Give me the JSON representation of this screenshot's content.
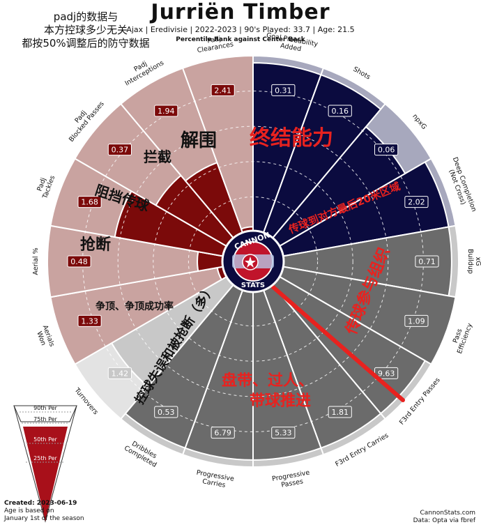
{
  "header": {
    "title": "Jurriën Timber",
    "subtitle": "Ajax  | Eredivisie | 2022-2023 | 90's Played: 33.7 | Age: 21.5",
    "subtitle2": "Percentile Rank against Center Back"
  },
  "note_lines": [
    "padj的数据与",
    "本方控球多少无关",
    "都按50%调整后的防守数据"
  ],
  "chart_data": {
    "type": "pizza",
    "title": "Jurriën Timber",
    "max": 100,
    "slices": [
      {
        "metric": "Goal Probability\nAdded",
        "value": 0.31,
        "percentile": 96,
        "group": "attack"
      },
      {
        "metric": "Shots",
        "value": 0.16,
        "percentile": 96,
        "group": "attack"
      },
      {
        "metric": "npxG",
        "value": 0.06,
        "percentile": 83,
        "group": "attack"
      },
      {
        "metric": "Deep Completion\n(Not Cross)",
        "value": 2.02,
        "percentile": 96,
        "group": "attack"
      },
      {
        "metric": "xG\nBuildup",
        "value": 0.71,
        "percentile": 96,
        "group": "possession"
      },
      {
        "metric": "Pass\nEfficiency",
        "value": 1.09,
        "percentile": 100,
        "group": "possession"
      },
      {
        "metric": "F3rd Entry Passes",
        "value": 9.63,
        "percentile": 96,
        "group": "possession"
      },
      {
        "metric": "F3rd Entry Carries",
        "value": 1.81,
        "percentile": 96,
        "group": "possession"
      },
      {
        "metric": "Progressive\nPasses",
        "value": 5.33,
        "percentile": 96,
        "group": "possession"
      },
      {
        "metric": "Progressive\nCarries",
        "value": 6.79,
        "percentile": 96,
        "group": "possession"
      },
      {
        "metric": "Dribbles\nCompleted",
        "value": 0.53,
        "percentile": 96,
        "group": "possession"
      },
      {
        "metric": "Turnovers",
        "value": 1.42,
        "percentile": 76,
        "group": "care"
      },
      {
        "metric": "Aerials\nWon",
        "value": 1.33,
        "percentile": 4,
        "group": "defence"
      },
      {
        "metric": "Aerial %",
        "value": 0.48,
        "percentile": 15,
        "group": "defence"
      },
      {
        "metric": "Padj\nTackles",
        "value": 1.68,
        "percentile": 63,
        "group": "defence"
      },
      {
        "metric": "Padj\nBlocked Passes",
        "value": 0.37,
        "percentile": 47,
        "group": "defence"
      },
      {
        "metric": "Padj\nInterceptions",
        "value": 1.94,
        "percentile": 43,
        "group": "defence"
      },
      {
        "metric": "Padj\nClearances",
        "value": 2.41,
        "percentile": 3,
        "group": "defence"
      }
    ],
    "annotations": [
      {
        "text": "终结能力",
        "color": "#e8221f"
      },
      {
        "text": "传球到对方最后20米区域",
        "color": "#e8221f"
      },
      {
        "text": "传球参与组织",
        "color": "#e8221f"
      },
      {
        "text": "盘带、过人、",
        "color": "#e8221f"
      },
      {
        "text": "带球推进",
        "color": "#e8221f"
      },
      {
        "text": "控球失误和被抢断（多）",
        "color": "#111111"
      },
      {
        "text": "争顶、争顶成功率",
        "color": "#111111"
      },
      {
        "text": "抢断",
        "color": "#111111"
      },
      {
        "text": "阻挡传球",
        "color": "#111111"
      },
      {
        "text": "拦截",
        "color": "#111111"
      },
      {
        "text": "解围",
        "color": "#111111"
      }
    ],
    "legend": {
      "labels": [
        "90th Per",
        "75th Per",
        "50th Per",
        "25th Per"
      ]
    },
    "logo": {
      "top": "CANNON",
      "bottom": "STATS"
    },
    "colors": {
      "attack_fill": "#0b0b3f",
      "attack_bg": "#a7a8bd",
      "possession_fill": "#6b6b6b",
      "possession_bg": "#c8c8c8",
      "care_fill": "#c8c8c8",
      "care_bg": "#e3e3e3",
      "defence_fill": "#7b0a0a",
      "defence_bg": "#c9a3a0",
      "accent_red": "#e8221f"
    }
  },
  "footer": {
    "created": "Created: 2023-06-19",
    "age_note_1": "Age is based on",
    "age_note_2": "January 1st of the season",
    "site": "CannonStats.com",
    "source": "Data: Opta via fbref"
  }
}
